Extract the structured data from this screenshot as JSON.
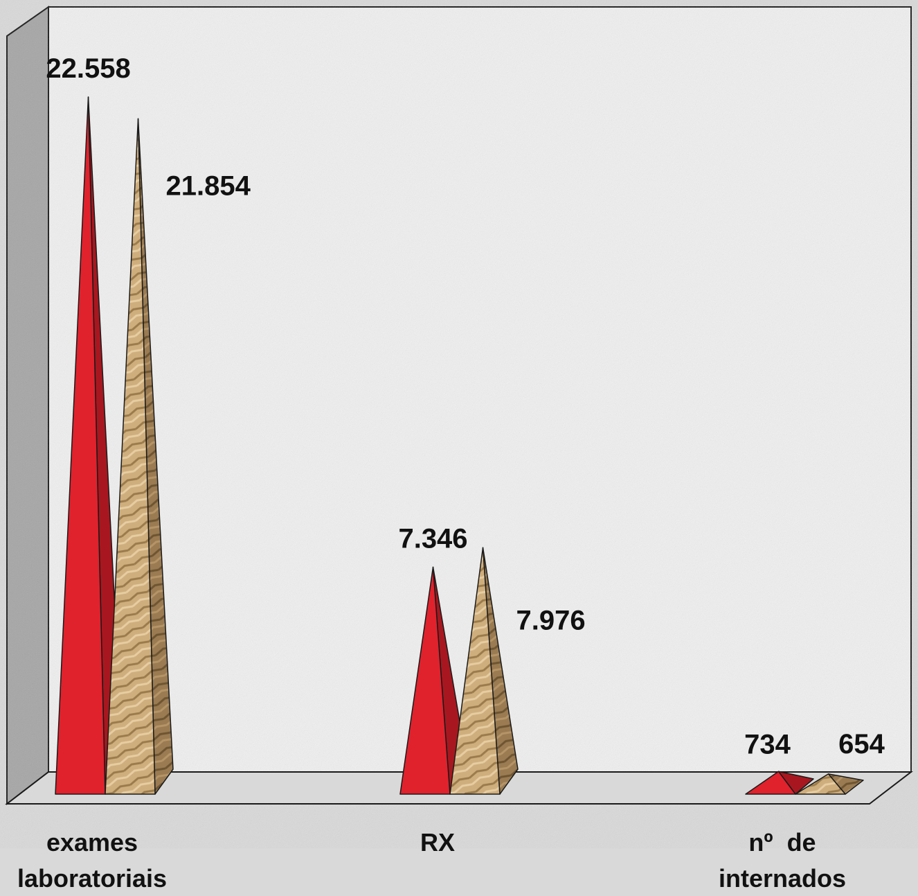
{
  "chart_data": {
    "type": "bar",
    "style": "3d-pyramid",
    "categories": [
      "exames laboratoriais",
      "RX",
      "nº de internados"
    ],
    "category_lines": [
      [
        "exames",
        "laboratoriais"
      ],
      [
        "RX"
      ],
      [
        "nº  de",
        "internados"
      ]
    ],
    "series": [
      {
        "values": [
          22558,
          7346,
          734
        ],
        "labels": [
          "22.558",
          "7.346",
          "734"
        ],
        "color": "#e0222d",
        "shade": "#a8171f"
      },
      {
        "values": [
          21854,
          7976,
          654
        ],
        "labels": [
          "21.854",
          "7.976",
          "654"
        ],
        "color": "#c9a777",
        "shade": "#8f7248"
      }
    ],
    "ylim": [
      0,
      24500
    ],
    "grid": false,
    "legend": "none",
    "title": "",
    "xlabel": "",
    "ylabel": "",
    "colors": {
      "background": "#d9d9d9",
      "wall": "#efefef",
      "side_wall": "#a6a6a6",
      "floor": "#d9d9d9",
      "outline": "#1a1a1a"
    }
  }
}
